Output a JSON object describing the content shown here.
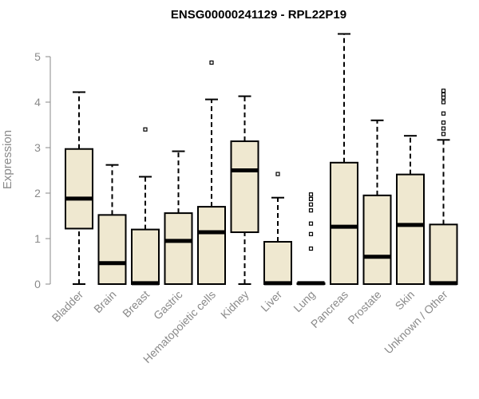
{
  "chart_data": {
    "type": "boxplot",
    "title": "ENSG00000241129 - RPL22P19",
    "ylabel": "Expression",
    "xlabel": "",
    "ylim": [
      0,
      5.5
    ],
    "yticks": [
      0,
      1,
      2,
      3,
      4,
      5
    ],
    "grid": false,
    "box_fill": "#efe8d0",
    "box_stroke": "#000000",
    "axis_color": "#8a8a8a",
    "categories": [
      "Bladder",
      "Brain",
      "Breast",
      "Gastric",
      "Hematopoietic cells",
      "Kidney",
      "Liver",
      "Lung",
      "Pancreas",
      "Prostate",
      "Skin",
      "Unknown / Other"
    ],
    "boxes": [
      {
        "whisker_low": 0,
        "q1": 1.22,
        "median": 1.88,
        "q3": 2.97,
        "whisker_high": 4.22,
        "outliers": []
      },
      {
        "whisker_low": 0,
        "q1": 0,
        "median": 0.46,
        "q3": 1.52,
        "whisker_high": 2.62,
        "outliers": []
      },
      {
        "whisker_low": 0,
        "q1": 0,
        "median": 0.02,
        "q3": 1.2,
        "whisker_high": 2.36,
        "outliers": [
          3.4
        ]
      },
      {
        "whisker_low": 0,
        "q1": 0,
        "median": 0.95,
        "q3": 1.56,
        "whisker_high": 2.92,
        "outliers": []
      },
      {
        "whisker_low": 0,
        "q1": 0,
        "median": 1.14,
        "q3": 1.7,
        "whisker_high": 4.06,
        "outliers": [
          4.87
        ]
      },
      {
        "whisker_low": 0,
        "q1": 1.14,
        "median": 2.5,
        "q3": 3.14,
        "whisker_high": 4.13,
        "outliers": []
      },
      {
        "whisker_low": 0,
        "q1": 0,
        "median": 0.02,
        "q3": 0.93,
        "whisker_high": 1.9,
        "outliers": [
          2.42
        ]
      },
      {
        "whisker_low": 0,
        "q1": 0,
        "median": 0.02,
        "q3": 0.02,
        "whisker_high": 0.02,
        "outliers": [
          0.78,
          1.1,
          1.33,
          1.62,
          1.75,
          1.87,
          1.97
        ]
      },
      {
        "whisker_low": 0,
        "q1": 0,
        "median": 1.26,
        "q3": 2.67,
        "whisker_high": 5.5,
        "outliers": []
      },
      {
        "whisker_low": 0,
        "q1": 0,
        "median": 0.6,
        "q3": 1.95,
        "whisker_high": 3.6,
        "outliers": []
      },
      {
        "whisker_low": 0,
        "q1": 0,
        "median": 1.3,
        "q3": 2.41,
        "whisker_high": 3.26,
        "outliers": []
      },
      {
        "whisker_low": 0,
        "q1": 0,
        "median": 0.02,
        "q3": 1.31,
        "whisker_high": 3.17,
        "outliers": [
          3.3,
          3.42,
          3.55,
          3.75,
          4.0,
          4.1,
          4.17,
          4.25
        ]
      }
    ]
  }
}
